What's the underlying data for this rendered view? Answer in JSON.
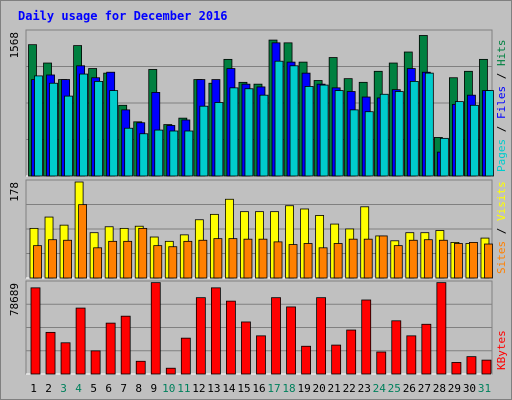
{
  "chart_data": {
    "title": "Daily usage for December 2016",
    "type": "bar",
    "categories": [
      "1",
      "2",
      "3",
      "4",
      "5",
      "6",
      "7",
      "8",
      "9",
      "10",
      "11",
      "12",
      "13",
      "14",
      "15",
      "16",
      "17",
      "18",
      "19",
      "20",
      "21",
      "22",
      "23",
      "24",
      "25",
      "26",
      "27",
      "28",
      "29",
      "30",
      "31"
    ],
    "weekend_days": [
      "3",
      "4",
      "10",
      "11",
      "17",
      "18",
      "24",
      "25",
      "31"
    ],
    "colors": {
      "background": "#C0C0C0",
      "frame": "#808080",
      "pages": "#00CCCC",
      "files": "#0000FF",
      "hits": "#008040",
      "sites": "#FF8000",
      "visits": "#FFFF00",
      "kbytes": "#FF0000",
      "title": "#0000FF",
      "weekday_label": "#000000",
      "weekend_label": "#00805C"
    },
    "panels": [
      {
        "id": "top",
        "max_label": "1568",
        "ymax": 1568,
        "legend": [
          "Pages",
          "Files",
          "Hits"
        ],
        "series": [
          {
            "name": "Hits",
            "color": "#008040",
            "values": [
              1430,
              1230,
              1050,
              1420,
              1170,
              1120,
              770,
              590,
              1160,
              560,
              630,
              1050,
              1010,
              1270,
              1020,
              1000,
              1480,
              1450,
              1240,
              1040,
              1290,
              1060,
              1020,
              1140,
              1230,
              1350,
              1530,
              420,
              1070,
              1140,
              1270
            ]
          },
          {
            "name": "Files",
            "color": "#0000FF",
            "values": [
              1050,
              1100,
              1050,
              1200,
              1070,
              1130,
              720,
              580,
              910,
              550,
              610,
              1050,
              1050,
              1170,
              1000,
              970,
              1450,
              1240,
              1120,
              1000,
              960,
              920,
              860,
              850,
              940,
              1170,
              1130,
              260,
              780,
              880,
              930
            ]
          },
          {
            "name": "Pages",
            "color": "#00CCCC",
            "values": [
              1090,
              1010,
              870,
              1110,
              1030,
              930,
              520,
              460,
              500,
              490,
              490,
              760,
              800,
              960,
              950,
              880,
              1250,
              1200,
              975,
              990,
              930,
              720,
              700,
              890,
              920,
              1030,
              1120,
              410,
              810,
              770,
              930
            ]
          }
        ]
      },
      {
        "id": "middle",
        "max_label": "178",
        "ymax": 178,
        "legend": [
          "Sites",
          "Visits"
        ],
        "series": [
          {
            "name": "Visits",
            "color": "#FFFF00",
            "values": [
              92,
              113,
              98,
              178,
              84,
              95,
              92,
              96,
              76,
              68,
              80,
              108,
              118,
              146,
              123,
              123,
              123,
              134,
              128,
              116,
              100,
              91,
              132,
              78,
              69,
              84,
              84,
              88,
              66,
              64,
              74
            ]
          },
          {
            "name": "Sites",
            "color": "#FF8000",
            "values": [
              60,
              71,
              70,
              136,
              56,
              68,
              68,
              92,
              60,
              58,
              68,
              70,
              73,
              73,
              72,
              72,
              67,
              62,
              64,
              56,
              64,
              72,
              72,
              78,
              60,
              70,
              71,
              70,
              64,
              66,
              63
            ]
          }
        ]
      },
      {
        "id": "bottom",
        "max_label": "78689",
        "ymax": 78689,
        "legend": [
          "KBytes"
        ],
        "series": [
          {
            "name": "KBytes",
            "color": "#FF0000",
            "values": [
              74500,
              36000,
              27000,
              57000,
              20000,
              44000,
              50000,
              11000,
              79000,
              5000,
              31000,
              66000,
              74500,
              63000,
              45000,
              33000,
              66000,
              58000,
              24000,
              66000,
              25000,
              38000,
              64000,
              19000,
              46000,
              33000,
              43000,
              79000,
              10000,
              15000,
              12000
            ]
          }
        ]
      }
    ]
  }
}
